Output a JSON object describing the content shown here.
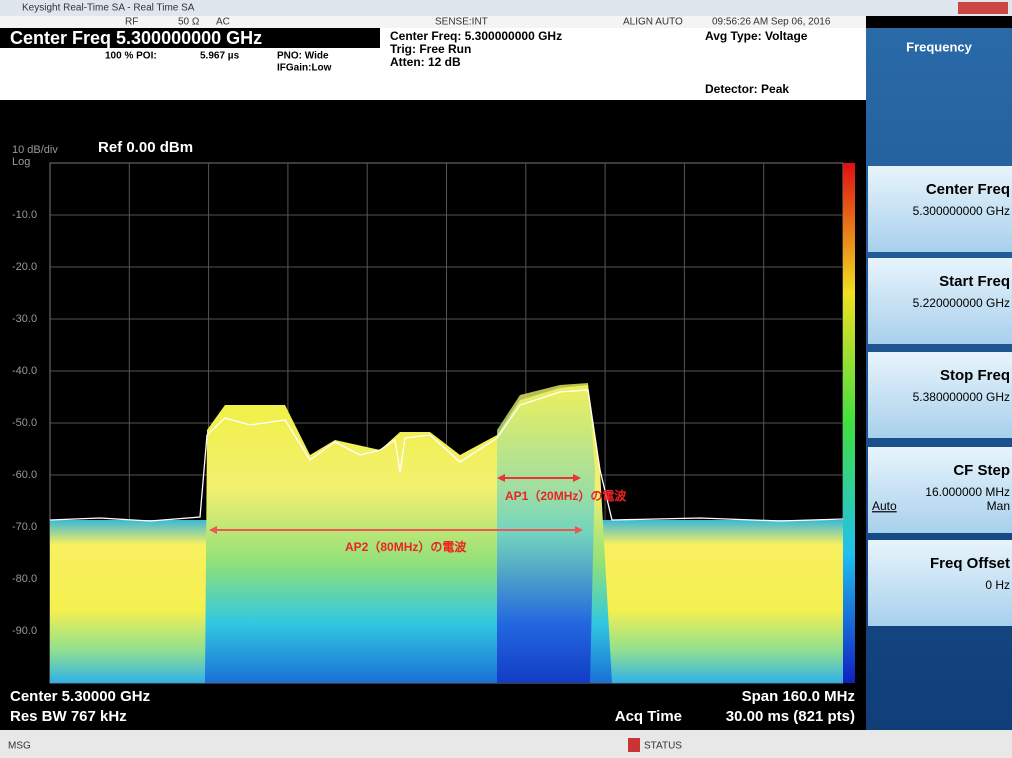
{
  "window": {
    "title": "Keysight Real-Time SA - Real Time SA"
  },
  "top_bar": {
    "rf": "RF",
    "impedance": "50 Ω",
    "coupling": "AC",
    "sense": "SENSE:INT",
    "align": "ALIGN AUTO",
    "timestamp": "09:56:26 AM Sep 06, 2016"
  },
  "header": {
    "center_freq": "Center Freq 5.300000000 GHz",
    "poi": "100 % POI:",
    "poi_time": "5.967 µs",
    "pno": "PNO: Wide",
    "ifgain": "IFGain:Low",
    "center_freq_2": "Center Freq: 5.300000000 GHz",
    "trig": "Trig: Free Run",
    "atten": "Atten: 12 dB",
    "avg_type": "Avg Type: Voltage",
    "detector": "Detector: Peak"
  },
  "plot": {
    "scale": "10 dB/div",
    "ref": "Ref 0.00 dBm",
    "log": "Log",
    "y_labels": [
      "-10.0",
      "-20.0",
      "-30.0",
      "-40.0",
      "-50.0",
      "-60.0",
      "-70.0",
      "-80.0",
      "-90.0"
    ],
    "annotations": {
      "ap1": "AP1（20MHz）の電波",
      "ap2": "AP2（80MHz）の電波"
    }
  },
  "footer": {
    "center": "Center 5.30000 GHz",
    "res_bw": "Res BW 767 kHz",
    "span": "Span 160.0 MHz",
    "acq_label": "Acq Time",
    "acq": "30.00 ms (821 pts)"
  },
  "softkeys": {
    "menu": "Frequency",
    "keys": [
      {
        "label": "Center Freq",
        "value": "5.300000000 GHz"
      },
      {
        "label": "Start Freq",
        "value": "5.220000000 GHz"
      },
      {
        "label": "Stop Freq",
        "value": "5.380000000 GHz"
      },
      {
        "label": "CF Step",
        "value": "16.000000 MHz",
        "auto": "Auto",
        "man": "Man"
      },
      {
        "label": "Freq Offset",
        "value": "0 Hz"
      }
    ]
  },
  "bottom_bar": {
    "msg": "MSG",
    "status": "STATUS"
  }
}
